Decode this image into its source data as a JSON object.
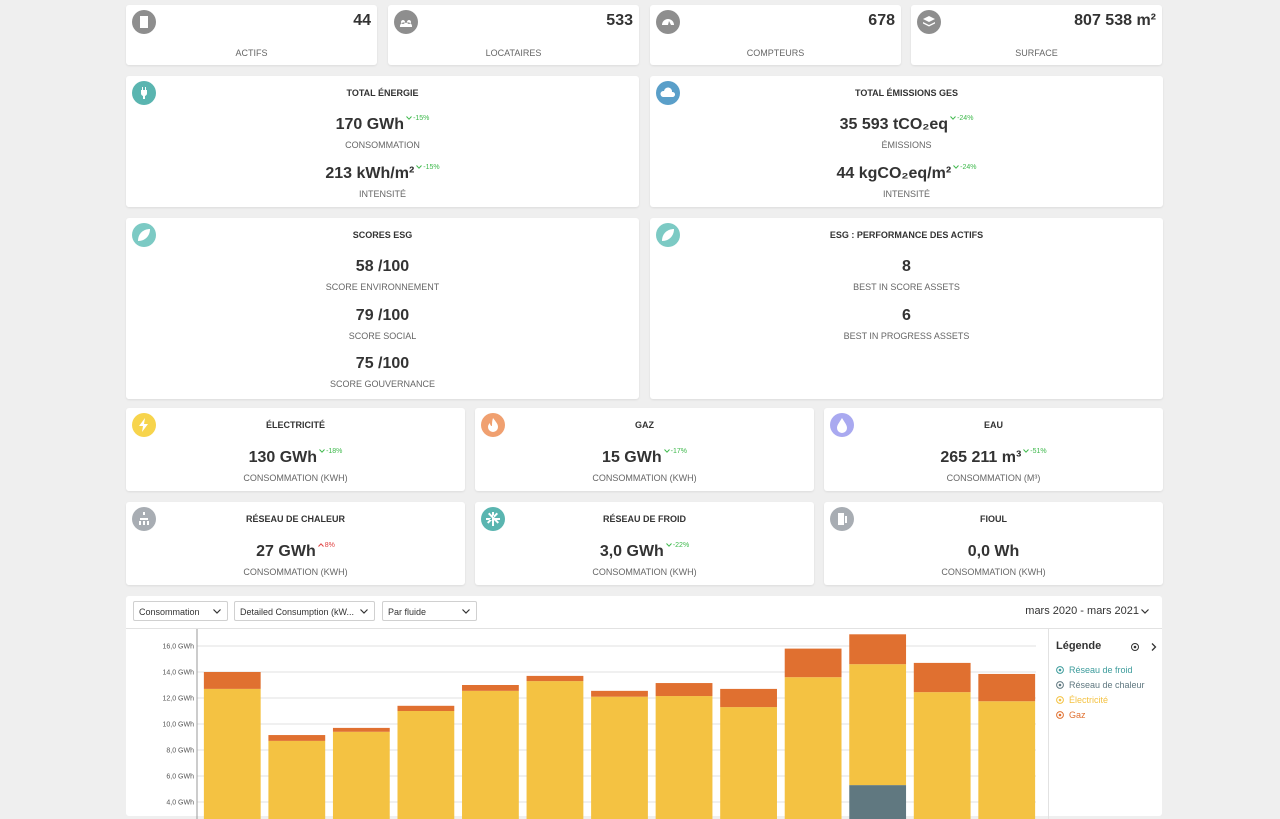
{
  "stats": [
    {
      "value": "44",
      "label": "ACTIFS"
    },
    {
      "value": "533",
      "label": "LOCATAIRES"
    },
    {
      "value": "678",
      "label": "COMPTEURS"
    },
    {
      "value": "807 538 m²",
      "label": "SURFACE"
    }
  ],
  "summary": [
    {
      "title": "TOTAL ÉNERGIE",
      "metrics": [
        {
          "value": "170 GWh",
          "change": "-15%",
          "label": "CONSOMMATION"
        },
        {
          "value": "213 kWh/m²",
          "change": "-15%",
          "label": "INTENSITÉ"
        }
      ]
    },
    {
      "title": "TOTAL ÉMISSIONS GES",
      "metrics": [
        {
          "value": "35 593 tCO₂eq",
          "change": "-24%",
          "label": "ÉMISSIONS"
        },
        {
          "value": "44 kgCO₂eq/m²",
          "change": "-24%",
          "label": "INTENSITÉ"
        }
      ]
    }
  ],
  "esg": [
    {
      "title": "SCORES ESG",
      "metrics": [
        {
          "value": "58 /100",
          "label": "SCORE ENVIRONNEMENT"
        },
        {
          "value": "79 /100",
          "label": "SCORE SOCIAL"
        },
        {
          "value": "75 /100",
          "label": "SCORE GOUVERNANCE"
        }
      ]
    },
    {
      "title": "ESG : PERFORMANCE DES ACTIFS",
      "metrics": [
        {
          "value": "8",
          "label": "BEST IN SCORE ASSETS"
        },
        {
          "value": "6",
          "label": "BEST IN PROGRESS ASSETS"
        }
      ]
    }
  ],
  "fluids": [
    {
      "title": "ÉLECTRICITÉ",
      "value": "130 GWh",
      "change": "-18%",
      "label": "CONSOMMATION (KWH)"
    },
    {
      "title": "GAZ",
      "value": "15 GWh",
      "change": "-17%",
      "label": "CONSOMMATION (KWH)"
    },
    {
      "title": "EAU",
      "value": "265 211 m³",
      "change": "-51%",
      "label": "CONSOMMATION (M³)"
    },
    {
      "title": "RÉSEAU DE CHALEUR",
      "value": "27 GWh",
      "change": "8%",
      "label": "CONSOMMATION (KWH)"
    },
    {
      "title": "RÉSEAU DE FROID",
      "value": "3,0 GWh",
      "change": "-22%",
      "label": "CONSOMMATION (KWH)"
    },
    {
      "title": "FIOUL",
      "value": "0,0 Wh",
      "label": "CONSOMMATION (KWH)"
    }
  ],
  "toolbar": {
    "filters": [
      "Consommation",
      "Detailed Consumption (kW...",
      "Par fluide"
    ],
    "period": "mars 2020 - mars 2021"
  },
  "chart_data": {
    "type": "bar",
    "stacked": true,
    "legend_title": "Légende",
    "legend": "right",
    "grid": true,
    "categories": [
      null,
      null,
      null,
      null,
      null,
      null,
      null,
      null,
      null,
      null,
      null,
      null,
      null
    ],
    "series": [
      {
        "name": "Réseau de froid",
        "color": "#3d9c9c",
        "values": [
          null,
          null,
          null,
          null,
          null,
          null,
          null,
          null,
          null,
          null,
          null,
          null,
          null
        ]
      },
      {
        "name": "Réseau de chaleur",
        "color": "#607880",
        "values": [
          null,
          null,
          null,
          null,
          null,
          null,
          null,
          null,
          null,
          null,
          5.3,
          null,
          null
        ]
      },
      {
        "name": "Électricité",
        "color": "#f4c242",
        "values": [
          12.7,
          8.7,
          9.4,
          11.0,
          12.55,
          13.3,
          12.1,
          12.15,
          11.3,
          13.6,
          9.3,
          12.45,
          11.75
        ]
      },
      {
        "name": "Gaz",
        "color": "#e07030",
        "values": [
          1.3,
          0.45,
          0.3,
          0.4,
          0.45,
          0.4,
          0.45,
          1.0,
          1.4,
          2.2,
          2.3,
          2.25,
          2.1
        ]
      }
    ],
    "ylim": [
      0,
      17
    ],
    "yticks": [
      {
        "value": 4,
        "label": "4,0 GWh"
      },
      {
        "value": 6,
        "label": "6,0 GWh"
      },
      {
        "value": 8,
        "label": "8,0 GWh"
      },
      {
        "value": 10,
        "label": "10,0 GWh"
      },
      {
        "value": 12,
        "label": "12,0 GWh"
      },
      {
        "value": 14,
        "label": "14,0 GWh"
      },
      {
        "value": 16,
        "label": "16,0 GWh"
      }
    ]
  }
}
